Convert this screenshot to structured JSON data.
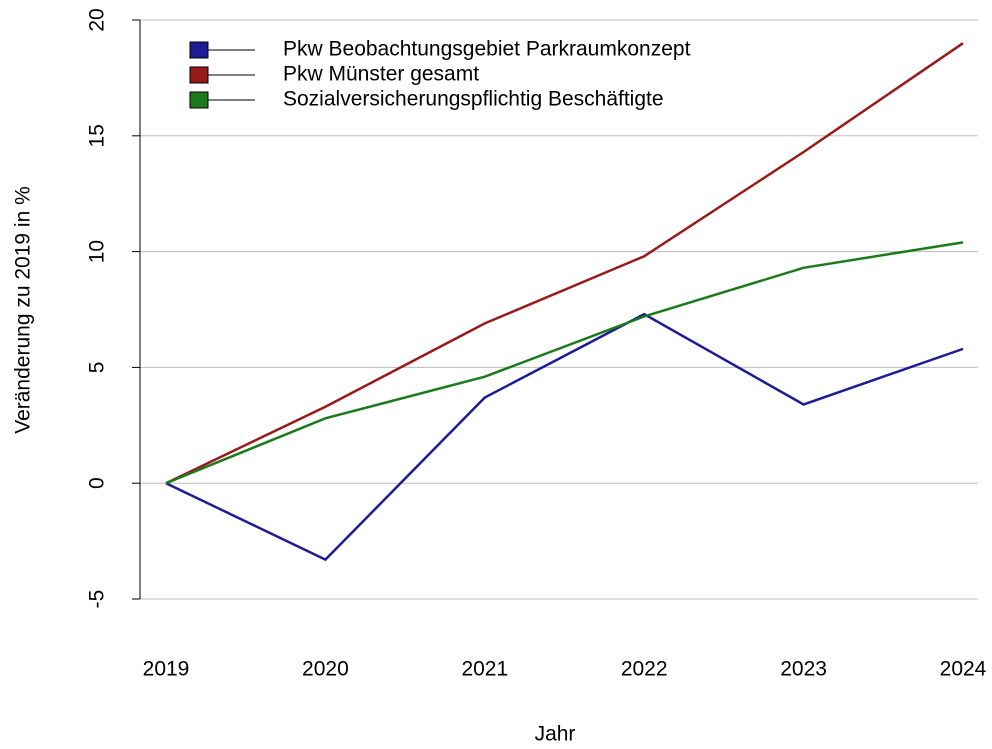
{
  "chart_data": {
    "type": "line",
    "xlabel": "Jahr",
    "ylabel": "Veränderung zu 2019 in %",
    "x": [
      2019,
      2020,
      2021,
      2022,
      2023,
      2024
    ],
    "xlim": [
      2019,
      2024
    ],
    "xticks": [
      2019,
      2020,
      2021,
      2022,
      2023,
      2024
    ],
    "ylim": [
      -5,
      20
    ],
    "yticks": [
      -5,
      0,
      5,
      10,
      15,
      20
    ],
    "grid": true,
    "legend": "upper left",
    "series": [
      {
        "name": "Pkw Beobachtungsgebiet Parkraumkonzept",
        "color": "#1c1c96",
        "values": [
          0,
          -3.3,
          3.7,
          7.3,
          3.4,
          5.8
        ]
      },
      {
        "name": "Pkw Münster gesamt",
        "color": "#991a1a",
        "values": [
          0,
          3.3,
          6.9,
          9.8,
          14.3,
          19.0
        ]
      },
      {
        "name": "Sozialversicherungspflichtig Beschäftigte",
        "color": "#1b7a1b",
        "values": [
          0,
          2.8,
          4.6,
          7.2,
          9.3,
          10.4
        ]
      }
    ]
  }
}
